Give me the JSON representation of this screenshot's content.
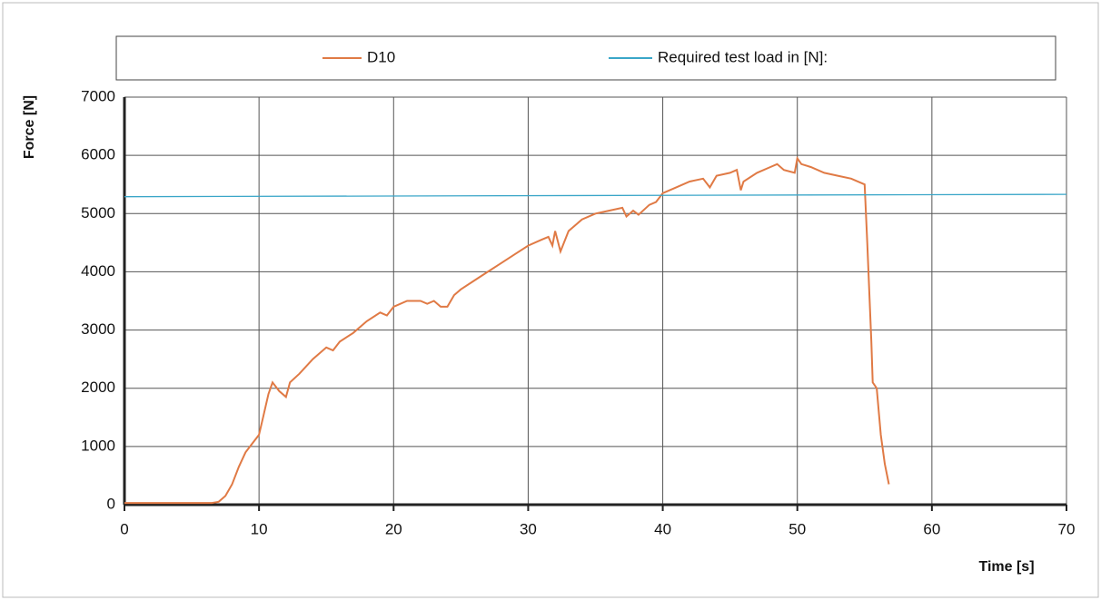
{
  "chart_data": {
    "type": "line",
    "xlabel": "Time [s]",
    "ylabel": "Force [N]",
    "xlim": [
      0,
      70
    ],
    "xticks": [
      0,
      10,
      20,
      30,
      40,
      50,
      60,
      70
    ],
    "ylim": [
      0,
      7000
    ],
    "yticks": [
      0,
      1000,
      2000,
      3000,
      4000,
      5000,
      6000,
      7000
    ],
    "grid": true,
    "legend": "top",
    "series": [
      {
        "name": "D10",
        "color": "#e07a45",
        "x": [
          0,
          6.5,
          7,
          7.5,
          8,
          8.5,
          9,
          9.5,
          10,
          10.3,
          10.7,
          11,
          11.5,
          12,
          12.3,
          13,
          14,
          15,
          15.5,
          16,
          17,
          18,
          19,
          19.5,
          20,
          21,
          22,
          22.5,
          23,
          23.5,
          24,
          24.5,
          25,
          26,
          27,
          28,
          29,
          30,
          31,
          31.5,
          31.8,
          32,
          32.4,
          33,
          34,
          35,
          36,
          37,
          37.3,
          37.8,
          38.2,
          39,
          39.5,
          40,
          41,
          42,
          43,
          43.5,
          44,
          45,
          45.5,
          45.8,
          46,
          47,
          48,
          48.5,
          49,
          49.8,
          50,
          50.3,
          51,
          52,
          53,
          54,
          55,
          55.2,
          55.5,
          55.6,
          55.9,
          56.2,
          56.5,
          56.8
        ],
        "values": [
          30,
          30,
          50,
          150,
          350,
          650,
          900,
          1050,
          1200,
          1500,
          1900,
          2100,
          1950,
          1850,
          2100,
          2250,
          2500,
          2700,
          2650,
          2800,
          2950,
          3150,
          3300,
          3250,
          3400,
          3500,
          3500,
          3450,
          3500,
          3400,
          3400,
          3600,
          3700,
          3850,
          4000,
          4150,
          4300,
          4450,
          4550,
          4600,
          4450,
          4700,
          4350,
          4700,
          4900,
          5000,
          5050,
          5100,
          4950,
          5050,
          4980,
          5150,
          5200,
          5350,
          5450,
          5550,
          5600,
          5450,
          5650,
          5700,
          5750,
          5400,
          5550,
          5700,
          5800,
          5850,
          5750,
          5700,
          5950,
          5850,
          5800,
          5700,
          5650,
          5600,
          5500,
          4500,
          2800,
          2100,
          2000,
          1200,
          700,
          350
        ]
      },
      {
        "name": "Required test load in [N]:",
        "color": "#3aa6c8",
        "x": [
          0,
          70
        ],
        "values": [
          5290,
          5330
        ]
      }
    ]
  }
}
